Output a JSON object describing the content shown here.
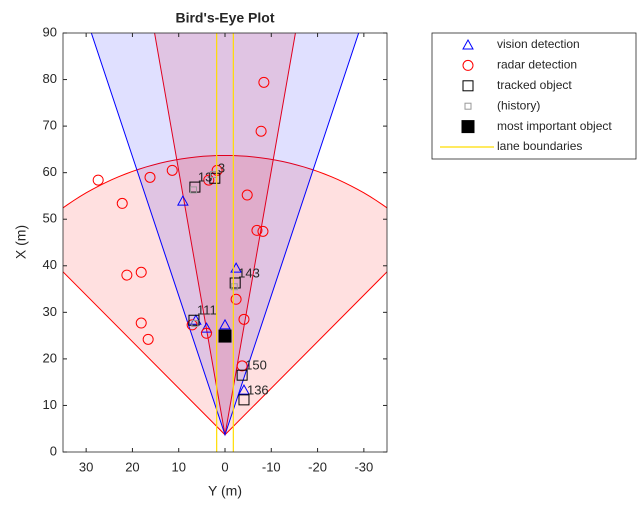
{
  "chart_data": {
    "type": "scatter",
    "title": "Bird's-Eye Plot",
    "x_label": "Y (m)",
    "y_label": "X (m)",
    "xlim": [
      35,
      -35
    ],
    "xticks": [
      30,
      20,
      10,
      0,
      -10,
      -20,
      -30
    ],
    "ylim": [
      0,
      90
    ],
    "yticks": [
      0,
      10,
      20,
      30,
      40,
      50,
      60,
      70,
      80,
      90
    ],
    "legend": "outside-right",
    "coverage_areas": [
      {
        "origin_x": 3.7,
        "range": 60,
        "fov": 90,
        "color": "#ff0000"
      },
      {
        "origin_x": 3.7,
        "range": 150,
        "fov": 20,
        "color": "#ff0000"
      },
      {
        "origin_x": 3.7,
        "range": 150,
        "fov": 37,
        "color": "#0000ff"
      }
    ],
    "series": [
      {
        "name": "vision detection",
        "marker": "triangle",
        "color": "#0000ff",
        "x": [
          9.1,
          -2.4,
          4,
          0,
          6.3,
          -4.1
        ],
        "values": [
          53.9,
          39.5,
          26.6,
          27.3,
          28.3,
          13.3
        ]
      },
      {
        "name": "radar detection",
        "marker": "circle",
        "color": "#ff0000",
        "x": [
          27.4,
          22.2,
          16.2,
          11.4,
          21.2,
          18.1,
          18.1,
          16.6,
          -8.4,
          -7.8,
          -4.8,
          -6.9,
          -8.2,
          -2.4,
          -4.1,
          -3.7,
          7.1,
          4,
          1.7,
          3.5
        ],
        "values": [
          58.4,
          53.4,
          59,
          60.5,
          38,
          38.6,
          27.7,
          24.2,
          79.4,
          68.9,
          55.2,
          47.6,
          47.4,
          32.8,
          28.5,
          18.5,
          27.3,
          25.5,
          60.5,
          58.4
        ]
      },
      {
        "name": "tracked object",
        "marker": "square",
        "color": "#000000",
        "x": [
          6.5,
          2.2,
          -2.2,
          6.7,
          -3.7,
          -4.1
        ],
        "values": [
          56.9,
          58.8,
          36.3,
          28.3,
          16.5,
          11.2
        ],
        "labels": [
          "13",
          "3",
          "143",
          "111",
          "150",
          "136"
        ]
      },
      {
        "name": "(history)",
        "marker": "small-square",
        "color": "#999999",
        "x": [
          6.8,
          2.5,
          -2,
          6.5
        ],
        "values": [
          56.3,
          59.6,
          35.5,
          27.6
        ]
      },
      {
        "name": "most important object",
        "marker": "filled-square",
        "color": "#000000",
        "x": [
          0
        ],
        "values": [
          24.9
        ]
      },
      {
        "name": "lane boundaries",
        "marker": "line",
        "color": "#ffdd00",
        "x": [
          1.8,
          1.8,
          null,
          -1.8,
          -1.8
        ],
        "values": [
          0,
          90,
          null,
          0,
          90
        ]
      }
    ]
  }
}
